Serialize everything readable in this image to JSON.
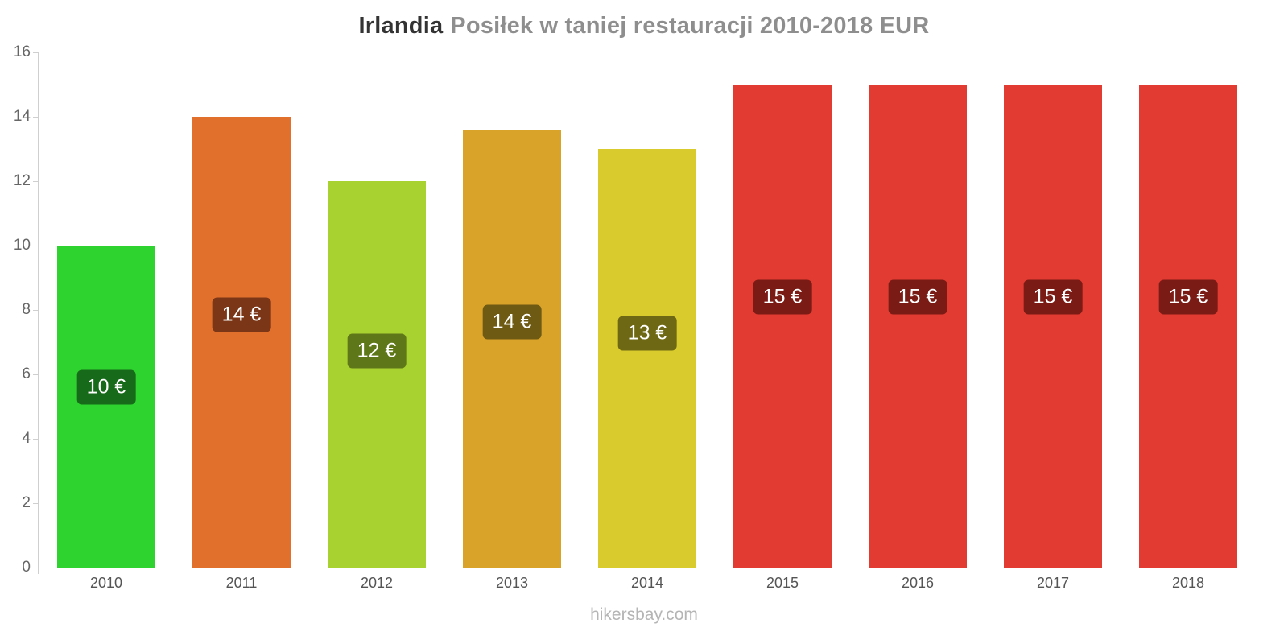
{
  "title": {
    "country": "Irlandia",
    "description": "Posiłek w taniej restauracji 2010-2018 EUR"
  },
  "footer": "hikersbay.com",
  "chart_data": {
    "type": "bar",
    "title": "Irlandia Posiłek w taniej restauracji 2010-2018 EUR",
    "xlabel": "",
    "ylabel": "",
    "categories": [
      "2010",
      "2011",
      "2012",
      "2013",
      "2014",
      "2015",
      "2016",
      "2017",
      "2018"
    ],
    "values": [
      10,
      14,
      12,
      13.6,
      13,
      15,
      15,
      15,
      15
    ],
    "bar_labels": [
      "10 €",
      "14 €",
      "12 €",
      "14 €",
      "13 €",
      "15 €",
      "15 €",
      "15 €",
      "15 €"
    ],
    "bar_colors": [
      "#2fd32f",
      "#e2702d",
      "#a8d22f",
      "#d9a32a",
      "#d9cb2e",
      "#e23b31",
      "#e23b31",
      "#e23b31",
      "#e23b31"
    ],
    "badge_colors": [
      "#176a1a",
      "#7a3617",
      "#5e7718",
      "#6e5a12",
      "#6e6814",
      "#7a1b15",
      "#7a1b15",
      "#7a1b15",
      "#7a1b15"
    ],
    "ylim": [
      0,
      16
    ],
    "yticks": [
      0,
      2,
      4,
      6,
      8,
      10,
      12,
      14,
      16
    ],
    "grid": "off",
    "legend": "none"
  }
}
